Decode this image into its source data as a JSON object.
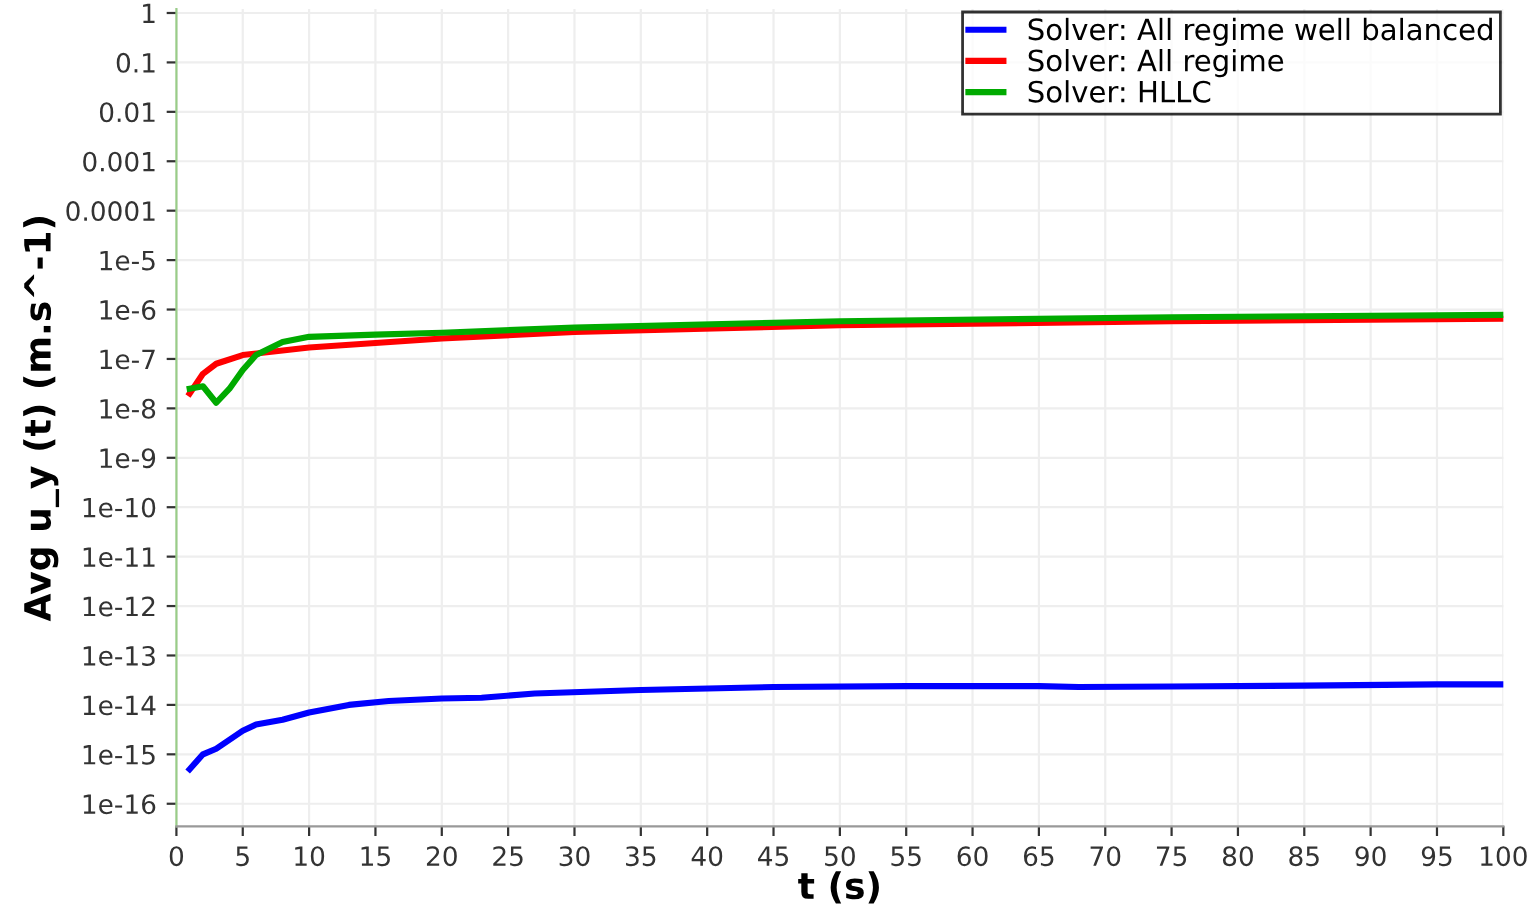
{
  "chart_data": {
    "type": "line",
    "xlabel": "t (s)",
    "ylabel": "Avg u_y (t) (m.s^-1)",
    "log": "y",
    "grid": true,
    "legend": "top right",
    "line_style": "solid",
    "marker": "none",
    "xlim": [
      0,
      100
    ],
    "xticks": [
      0,
      5,
      10,
      15,
      20,
      25,
      30,
      35,
      40,
      45,
      50,
      55,
      60,
      65,
      70,
      75,
      80,
      85,
      90,
      95,
      100
    ],
    "ylim": [
      3.5e-17,
      1.2
    ],
    "yticks": [
      {
        "value": 1,
        "label": "1"
      },
      {
        "value": 0.1,
        "label": "0.1"
      },
      {
        "value": 0.01,
        "label": "0.01"
      },
      {
        "value": 0.001,
        "label": "0.001"
      },
      {
        "value": 0.0001,
        "label": "0.0001"
      },
      {
        "value": 1e-05,
        "label": "1e-5"
      },
      {
        "value": 1e-06,
        "label": "1e-6"
      },
      {
        "value": 1e-07,
        "label": "1e-7"
      },
      {
        "value": 1e-08,
        "label": "1e-8"
      },
      {
        "value": 1e-09,
        "label": "1e-9"
      },
      {
        "value": 1e-10,
        "label": "1e-10"
      },
      {
        "value": 1e-11,
        "label": "1e-11"
      },
      {
        "value": 1e-12,
        "label": "1e-12"
      },
      {
        "value": 1e-13,
        "label": "1e-13"
      },
      {
        "value": 1e-14,
        "label": "1e-14"
      },
      {
        "value": 1e-15,
        "label": "1e-15"
      },
      {
        "value": 1e-16,
        "label": "1e-16"
      }
    ],
    "series": [
      {
        "name": "Solver: All regime well balanced",
        "color": "#0000ff",
        "x": [
          1,
          2,
          3,
          5,
          6,
          8,
          10,
          13,
          16,
          20,
          23,
          27,
          35,
          45,
          55,
          65,
          68,
          75,
          85,
          95,
          100
        ],
        "values": [
          5e-16,
          1e-15,
          1.3e-15,
          3e-15,
          4e-15,
          5e-15,
          7e-15,
          1e-14,
          1.2e-14,
          1.35e-14,
          1.4e-14,
          1.7e-14,
          2e-14,
          2.3e-14,
          2.4e-14,
          2.4e-14,
          2.3e-14,
          2.35e-14,
          2.45e-14,
          2.6e-14,
          2.6e-14
        ]
      },
      {
        "name": "Solver: All regime",
        "color": "#ff0000",
        "x": [
          1,
          2,
          3,
          5,
          10,
          20,
          30,
          50,
          75,
          100
        ],
        "values": [
          2e-08,
          5e-08,
          8e-08,
          1.2e-07,
          1.7e-07,
          2.6e-07,
          3.5e-07,
          4.8e-07,
          5.8e-07,
          6.5e-07
        ]
      },
      {
        "name": "Solver: HLLC",
        "color": "#00aa00",
        "x": [
          1,
          2,
          3,
          4,
          5,
          6,
          8,
          10,
          15,
          20,
          30,
          50,
          75,
          100
        ],
        "values": [
          2.5e-08,
          2.8e-08,
          1.3e-08,
          2.5e-08,
          6e-08,
          1.2e-07,
          2.2e-07,
          2.8e-07,
          3.1e-07,
          3.4e-07,
          4.3e-07,
          5.8e-07,
          7e-07,
          7.8e-07
        ]
      }
    ]
  }
}
